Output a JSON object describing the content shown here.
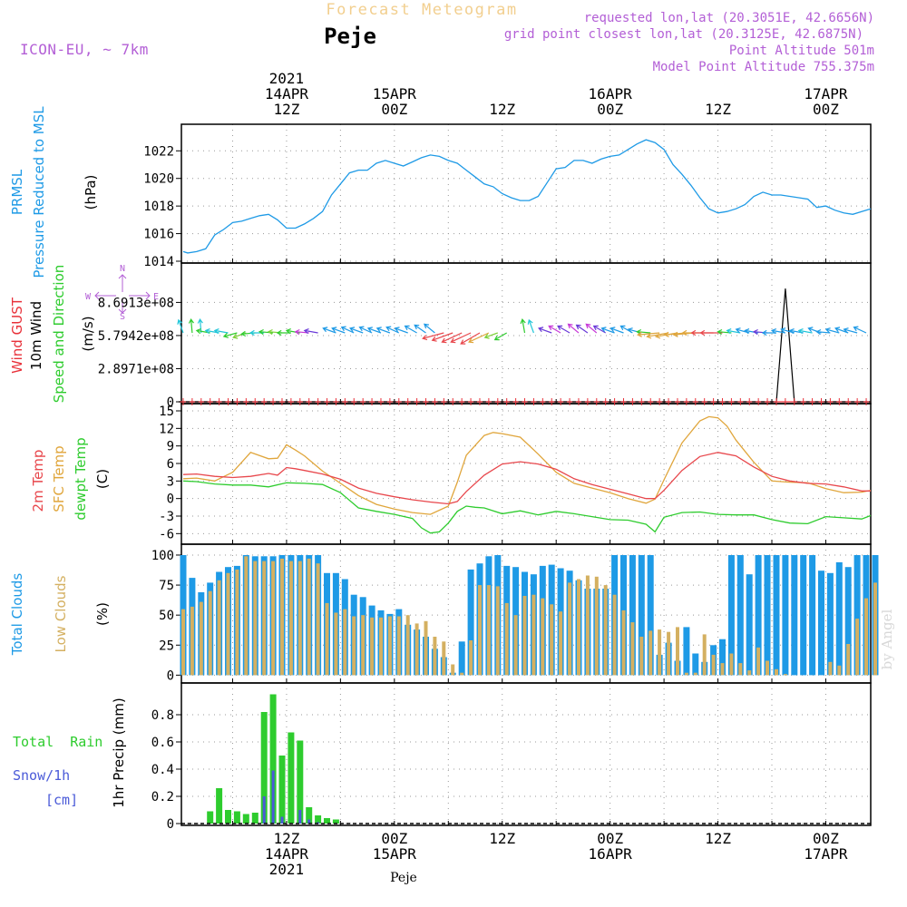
{
  "header": {
    "title": "Forecast Meteogram",
    "location": "Peje",
    "model": "ICON-EU, ~ 7km",
    "requested": "requested lon,lat (20.3051E, 42.6656N)",
    "gridpoint": "grid point closest lon,lat (20.3125E, 42.6875N)",
    "altitude": "Point Altitude 501m",
    "model_altitude": "Model Point Altitude 755.375m",
    "footer_location": "Peje",
    "watermark": "by Angel"
  },
  "colors": {
    "pressure": "#1e9ae6",
    "gust": "#e8313a",
    "wind": "#000000",
    "speed_dir": "#2ecc2e",
    "t2m": "#e8474c",
    "sfc": "#e0a63c",
    "dewpt": "#2ecc2e",
    "total_clouds": "#1e9ae6",
    "low_clouds": "#d4b061",
    "rain": "#2ecc2e",
    "snow": "#4a5ad8",
    "meta": "#b35fd6",
    "title": "#f2cf8f"
  },
  "time_axis": {
    "top_labels": [
      {
        "t": 12,
        "lines": [
          "2021",
          "14APR",
          "12Z"
        ]
      },
      {
        "t": 24,
        "lines": [
          "15APR",
          "00Z"
        ]
      },
      {
        "t": 36,
        "lines": [
          "12Z"
        ]
      },
      {
        "t": 48,
        "lines": [
          "16APR",
          "00Z"
        ]
      },
      {
        "t": 60,
        "lines": [
          "12Z"
        ]
      },
      {
        "t": 72,
        "lines": [
          "17APR",
          "00Z"
        ]
      }
    ],
    "bottom_labels": [
      {
        "t": 12,
        "lines": [
          "12Z",
          "14APR",
          "2021"
        ]
      },
      {
        "t": 24,
        "lines": [
          "00Z",
          "15APR"
        ]
      },
      {
        "t": 36,
        "lines": [
          "12Z"
        ]
      },
      {
        "t": 48,
        "lines": [
          "00Z",
          "16APR"
        ]
      },
      {
        "t": 60,
        "lines": [
          "12Z"
        ]
      },
      {
        "t": 72,
        "lines": [
          "00Z",
          "17APR"
        ]
      }
    ],
    "t_range": [
      0.3,
      77
    ]
  },
  "chart_data": [
    {
      "type": "line",
      "title": "PRMSL Pressure Reduced to MSL",
      "ylabel_lines": [
        "PRMSL",
        "Pressure Reduced to MSL"
      ],
      "unit": "(hPa)",
      "ylim": [
        1014,
        1023.4
      ],
      "yticks": [
        1014,
        1016,
        1018,
        1020,
        1022
      ],
      "series": [
        {
          "name": "PRMSL",
          "x": [
            0.5,
            1,
            2,
            3,
            4,
            5,
            6,
            7,
            8,
            9,
            10,
            11,
            12,
            13,
            14,
            15,
            16,
            17,
            18,
            19,
            20,
            21,
            22,
            23,
            24,
            25,
            26,
            27,
            28,
            29,
            30,
            31,
            32,
            33,
            34,
            35,
            36,
            37,
            38,
            39,
            40,
            41,
            42,
            43,
            44,
            45,
            46,
            47,
            48,
            49,
            50,
            51,
            52,
            53,
            54,
            55,
            56,
            57,
            58,
            59,
            60,
            61,
            62,
            63,
            64,
            65,
            66,
            67,
            68,
            69,
            70,
            71,
            72,
            73,
            74,
            75,
            76,
            77
          ],
          "values": [
            1014.7,
            1014.6,
            1014.7,
            1014.9,
            1015.9,
            1016.3,
            1016.8,
            1016.9,
            1017.1,
            1017.3,
            1017.4,
            1017.0,
            1016.4,
            1016.4,
            1016.7,
            1017.1,
            1017.6,
            1018.8,
            1019.6,
            1020.4,
            1020.6,
            1020.6,
            1021.1,
            1021.3,
            1021.1,
            1020.9,
            1021.2,
            1021.5,
            1021.7,
            1021.6,
            1021.3,
            1021.1,
            1020.6,
            1020.1,
            1019.6,
            1019.4,
            1018.9,
            1018.6,
            1018.4,
            1018.4,
            1018.7,
            1019.7,
            1020.7,
            1020.8,
            1021.3,
            1021.3,
            1021.1,
            1021.4,
            1021.6,
            1021.7,
            1022.1,
            1022.5,
            1022.8,
            1022.6,
            1022.1,
            1021.0,
            1020.3,
            1019.5,
            1018.6,
            1017.8,
            1017.5,
            1017.6,
            1017.8,
            1018.1,
            1018.7,
            1019.0,
            1018.8,
            1018.8,
            1018.7,
            1018.6,
            1018.5,
            1017.9,
            1018.0,
            1017.7,
            1017.5,
            1017.4,
            1017.6,
            1017.8
          ]
        }
      ]
    },
    {
      "type": "line",
      "title": "Wind GUST / 10m Wind Speed and Direction",
      "ylabel_lines": [
        "Wind GUST",
        "10m Wind",
        "Speed and Direction"
      ],
      "unit": "(m/s)",
      "ylim": [
        0,
        1150000000.0
      ],
      "yticks": [
        0,
        289710000,
        579420000,
        869130000
      ],
      "ytick_labels": [
        "0",
        "2.8971e+08",
        "5.7942e+08",
        "8.6913e+08"
      ],
      "compass": {
        "n": "N",
        "s": "S",
        "w": "W",
        "e": "E"
      },
      "series": [
        {
          "name": "Wind GUST",
          "x": [
            0,
            68,
            69,
            70,
            71,
            77
          ],
          "values": [
            0,
            0,
            0,
            0,
            0,
            0
          ]
        },
        {
          "name": "10m Wind",
          "x": [
            0,
            66.5,
            67.5,
            68.5,
            77
          ],
          "values": [
            0,
            0,
            990000000.0,
            0,
            0
          ]
        }
      ]
    },
    {
      "type": "line",
      "title": "2m Temp / SFC Temp / dewpt Temp",
      "ylabel_lines": [
        "2m Temp",
        "SFC Temp",
        "dewpt Temp"
      ],
      "unit": "(C)",
      "ylim": [
        -7.5,
        15
      ],
      "yticks": [
        -6,
        -3,
        0,
        3,
        6,
        9,
        12,
        15
      ],
      "series": [
        {
          "name": "2m Temp",
          "x": [
            0.5,
            2,
            4,
            6,
            8,
            10,
            11,
            12,
            13,
            14,
            16,
            18,
            20,
            22,
            24,
            26,
            28,
            30,
            31,
            32,
            34,
            36,
            38,
            40,
            42,
            44,
            46,
            48,
            50,
            52,
            53,
            54,
            56,
            58,
            60,
            62,
            64,
            66,
            68,
            70,
            72,
            74,
            76,
            77
          ],
          "values": [
            4.1,
            4.2,
            3.8,
            3.6,
            3.8,
            4.3,
            4.0,
            5.3,
            5.1,
            4.8,
            4.2,
            3.3,
            1.8,
            0.9,
            0.3,
            -0.2,
            -0.6,
            -0.9,
            -0.5,
            1.2,
            4.0,
            5.9,
            6.3,
            5.9,
            5.0,
            3.4,
            2.4,
            1.6,
            0.8,
            0.0,
            0.0,
            1.4,
            4.8,
            7.2,
            7.9,
            7.3,
            5.4,
            3.8,
            3.0,
            2.6,
            2.5,
            2.0,
            1.3,
            1.3
          ]
        },
        {
          "name": "SFC Temp",
          "x": [
            0.5,
            2,
            4,
            6,
            8,
            10,
            11,
            12,
            13,
            14,
            16,
            18,
            20,
            22,
            24,
            26,
            28,
            30,
            31,
            32,
            34,
            35,
            36,
            38,
            40,
            42,
            44,
            46,
            48,
            50,
            52,
            53,
            54,
            56,
            58,
            59,
            60,
            61,
            62,
            64,
            66,
            68,
            70,
            72,
            74,
            76,
            77
          ],
          "values": [
            3.4,
            3.5,
            3.0,
            4.5,
            7.9,
            6.8,
            6.9,
            9.2,
            8.3,
            7.3,
            4.7,
            2.6,
            0.5,
            -1.0,
            -1.8,
            -2.4,
            -2.7,
            -1.3,
            2.8,
            7.4,
            10.8,
            11.3,
            11.1,
            10.5,
            7.6,
            4.5,
            2.6,
            1.8,
            1.0,
            0.0,
            -0.8,
            -0.1,
            3.2,
            9.5,
            13.3,
            14.0,
            13.8,
            12.4,
            10.0,
            6.2,
            3.0,
            2.8,
            2.7,
            1.7,
            1.0,
            1.1,
            1.4
          ]
        },
        {
          "name": "dewpt Temp",
          "x": [
            0.5,
            2,
            4,
            6,
            8,
            10,
            12,
            14,
            16,
            18,
            20,
            22,
            24,
            26,
            27,
            28,
            29,
            30,
            31,
            32,
            33,
            34,
            36,
            38,
            40,
            42,
            44,
            46,
            48,
            50,
            52,
            53,
            54,
            56,
            58,
            60,
            62,
            64,
            66,
            68,
            70,
            72,
            74,
            76,
            77
          ],
          "values": [
            3.0,
            2.9,
            2.5,
            2.3,
            2.3,
            2.0,
            2.7,
            2.6,
            2.4,
            1.0,
            -1.6,
            -2.2,
            -2.7,
            -3.4,
            -5.0,
            -5.9,
            -5.7,
            -4.2,
            -2.2,
            -1.3,
            -1.5,
            -1.6,
            -2.6,
            -2.1,
            -2.8,
            -2.2,
            -2.6,
            -3.1,
            -3.6,
            -3.7,
            -4.4,
            -5.7,
            -3.2,
            -2.4,
            -2.3,
            -2.7,
            -2.8,
            -2.8,
            -3.6,
            -4.2,
            -4.3,
            -3.1,
            -3.3,
            -3.5,
            -2.9
          ]
        }
      ]
    },
    {
      "type": "bar",
      "title": "Total Clouds / Low Clouds",
      "ylabel_lines": [
        "Total Clouds",
        "Low Clouds"
      ],
      "unit": "(%)",
      "ylim": [
        -5,
        103
      ],
      "yticks": [
        0,
        25,
        50,
        75,
        100
      ],
      "x_start": 0,
      "x_step": 1,
      "series": [
        {
          "name": "Total Clouds",
          "values": [
            100,
            81,
            69,
            77,
            86,
            90,
            91,
            100,
            99,
            99,
            99,
            100,
            100,
            100,
            100,
            100,
            85,
            85,
            80,
            67,
            65,
            58,
            54,
            51,
            55,
            42,
            38,
            32,
            22,
            15,
            2,
            28,
            88,
            93,
            99,
            100,
            91,
            90,
            86,
            84,
            91,
            92,
            89,
            87,
            79,
            72,
            72,
            72,
            100,
            100,
            100,
            100,
            100,
            17,
            27,
            12,
            40,
            18,
            11,
            25,
            30,
            100,
            100,
            84,
            100,
            100,
            100,
            100,
            100,
            100,
            100,
            87,
            85,
            94,
            90,
            100,
            100,
            100
          ]
        },
        {
          "name": "Low Clouds",
          "values": [
            55,
            57,
            61,
            70,
            79,
            85,
            88,
            99,
            95,
            95,
            95,
            97,
            95,
            95,
            97,
            93,
            60,
            52,
            55,
            49,
            50,
            48,
            48,
            49,
            49,
            50,
            43,
            45,
            32,
            28,
            9,
            2,
            29,
            75,
            75,
            74,
            60,
            50,
            66,
            67,
            64,
            59,
            53,
            77,
            80,
            83,
            82,
            75,
            67,
            54,
            44,
            32,
            37,
            38,
            36,
            40,
            2,
            2,
            34,
            17,
            10,
            18,
            10,
            4,
            23,
            12,
            5,
            1,
            0,
            0,
            0,
            0,
            11,
            8,
            26,
            47,
            64,
            77
          ]
        }
      ]
    },
    {
      "type": "bar",
      "title": "Total Rain / Snow/1h",
      "ylabel_lines": [
        "Total  Rain",
        "Snow/1h",
        "[cm]"
      ],
      "axis_label": "1hr Precip (mm)",
      "ylim": [
        0,
        0.98
      ],
      "yticks": [
        0,
        0.2,
        0.4,
        0.6,
        0.8
      ],
      "ytick_labels": [
        "0",
        "0.2",
        "0.4",
        "0.6",
        "0.8"
      ],
      "x_start": 0,
      "x_step": 1,
      "series": [
        {
          "name": "Total Rain",
          "values": [
            0,
            0,
            0,
            0.09,
            0.26,
            0.1,
            0.09,
            0.07,
            0.08,
            0.82,
            0.95,
            0.5,
            0.67,
            0.61,
            0.12,
            0.06,
            0.04,
            0.03
          ]
        },
        {
          "name": "Snow/1h",
          "values": [
            0,
            0,
            0,
            0,
            0,
            0,
            0,
            0,
            0,
            0.2,
            0.39,
            0.05,
            0,
            0.1,
            0.03,
            0.01,
            0,
            0
          ]
        }
      ]
    }
  ]
}
